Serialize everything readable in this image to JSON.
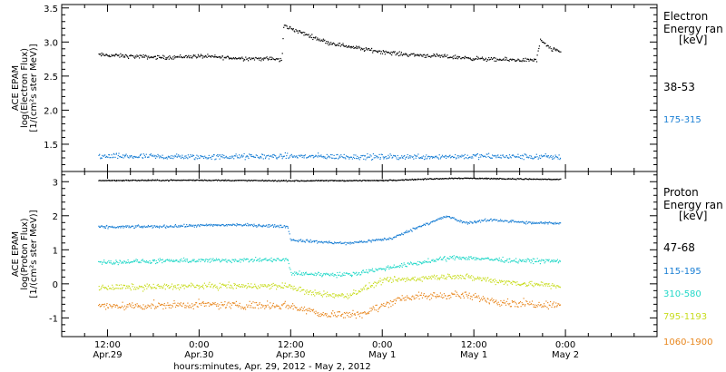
{
  "chart_data": [
    {
      "type": "scatter",
      "panel": "electron",
      "ylabel_lines": [
        "ACE EPAM",
        "log(Electron Flux)",
        "[1/(cm²s ster MeV)]"
      ],
      "ylim": [
        1.1,
        3.55
      ],
      "yticks": [
        1.5,
        2.0,
        2.5,
        3.0,
        3.5
      ],
      "ytick_labels": [
        "1.5",
        "2.0",
        "2.5",
        "3.0",
        "3.5"
      ],
      "legend_title_lines": [
        "Electron",
        "Energy ran",
        "[keV]"
      ],
      "series": [
        {
          "name": "38-53",
          "color": "#000000",
          "level_points": [
            {
              "x": 0.45,
              "y": 2.82
            },
            {
              "x": 0.6,
              "y": 2.8
            },
            {
              "x": 0.8,
              "y": 2.78
            },
            {
              "x": 1.0,
              "y": 2.8
            },
            {
              "x": 1.2,
              "y": 2.77
            },
            {
              "x": 1.4,
              "y": 2.76
            },
            {
              "x": 1.45,
              "y": 2.74
            },
            {
              "x": 1.46,
              "y": 3.25
            },
            {
              "x": 1.55,
              "y": 3.15
            },
            {
              "x": 1.7,
              "y": 3.0
            },
            {
              "x": 1.9,
              "y": 2.9
            },
            {
              "x": 2.1,
              "y": 2.83
            },
            {
              "x": 2.3,
              "y": 2.8
            },
            {
              "x": 2.6,
              "y": 2.75
            },
            {
              "x": 2.84,
              "y": 2.74
            },
            {
              "x": 2.86,
              "y": 3.03
            },
            {
              "x": 2.92,
              "y": 2.9
            },
            {
              "x": 2.97,
              "y": 2.87
            }
          ]
        },
        {
          "name": "175-315",
          "color": "#1a7fd4",
          "level_points": [
            {
              "x": 0.45,
              "y": 1.33
            },
            {
              "x": 1.0,
              "y": 1.32
            },
            {
              "x": 1.5,
              "y": 1.33
            },
            {
              "x": 2.0,
              "y": 1.32
            },
            {
              "x": 2.5,
              "y": 1.33
            },
            {
              "x": 2.97,
              "y": 1.32
            }
          ]
        }
      ]
    },
    {
      "type": "scatter",
      "panel": "proton",
      "ylabel_lines": [
        "ACE EPAM",
        "log(Proton Flux)",
        "[1/(cm²s ster MeV)]"
      ],
      "ylim": [
        -1.55,
        3.3
      ],
      "yticks": [
        -1,
        0,
        1,
        2,
        3
      ],
      "ytick_labels": [
        "-1",
        "0",
        "1",
        "2",
        "3"
      ],
      "legend_title_lines": [
        "Proton",
        "Energy ran",
        "[keV]"
      ],
      "series": [
        {
          "name": "47-68",
          "color": "#000000",
          "level_points": [
            {
              "x": 0.45,
              "y": 3.05
            },
            {
              "x": 1.0,
              "y": 3.06
            },
            {
              "x": 1.5,
              "y": 3.04
            },
            {
              "x": 2.0,
              "y": 3.05
            },
            {
              "x": 2.4,
              "y": 3.12
            },
            {
              "x": 2.97,
              "y": 3.08
            }
          ]
        },
        {
          "name": "115-195",
          "color": "#1a7fd4",
          "level_points": [
            {
              "x": 0.45,
              "y": 1.68
            },
            {
              "x": 0.8,
              "y": 1.7
            },
            {
              "x": 1.2,
              "y": 1.75
            },
            {
              "x": 1.48,
              "y": 1.7
            },
            {
              "x": 1.5,
              "y": 1.3
            },
            {
              "x": 1.8,
              "y": 1.2
            },
            {
              "x": 2.05,
              "y": 1.35
            },
            {
              "x": 2.2,
              "y": 1.7
            },
            {
              "x": 2.35,
              "y": 2.0
            },
            {
              "x": 2.45,
              "y": 1.8
            },
            {
              "x": 2.6,
              "y": 1.9
            },
            {
              "x": 2.8,
              "y": 1.8
            },
            {
              "x": 2.97,
              "y": 1.8
            }
          ]
        },
        {
          "name": "310-580",
          "color": "#22d8c8",
          "level_points": [
            {
              "x": 0.45,
              "y": 0.65
            },
            {
              "x": 1.0,
              "y": 0.7
            },
            {
              "x": 1.48,
              "y": 0.72
            },
            {
              "x": 1.5,
              "y": 0.32
            },
            {
              "x": 1.8,
              "y": 0.28
            },
            {
              "x": 2.1,
              "y": 0.55
            },
            {
              "x": 2.4,
              "y": 0.8
            },
            {
              "x": 2.7,
              "y": 0.7
            },
            {
              "x": 2.97,
              "y": 0.68
            }
          ]
        },
        {
          "name": "795-1193",
          "color": "#c8dc1e",
          "level_points": [
            {
              "x": 0.45,
              "y": -0.1
            },
            {
              "x": 1.0,
              "y": -0.05
            },
            {
              "x": 1.48,
              "y": -0.05
            },
            {
              "x": 1.6,
              "y": -0.25
            },
            {
              "x": 1.8,
              "y": -0.35
            },
            {
              "x": 2.0,
              "y": 0.1
            },
            {
              "x": 2.4,
              "y": 0.25
            },
            {
              "x": 2.7,
              "y": 0.05
            },
            {
              "x": 2.97,
              "y": -0.05
            }
          ]
        },
        {
          "name": "1060-1900",
          "color": "#e8871e",
          "level_points": [
            {
              "x": 0.45,
              "y": -0.65
            },
            {
              "x": 1.0,
              "y": -0.6
            },
            {
              "x": 1.48,
              "y": -0.62
            },
            {
              "x": 1.7,
              "y": -0.9
            },
            {
              "x": 1.9,
              "y": -0.85
            },
            {
              "x": 2.1,
              "y": -0.4
            },
            {
              "x": 2.4,
              "y": -0.3
            },
            {
              "x": 2.7,
              "y": -0.55
            },
            {
              "x": 2.97,
              "y": -0.6
            }
          ]
        }
      ]
    }
  ],
  "x_axis": {
    "xlim": [
      0.25,
      3.5
    ],
    "major_ticks": [
      0.5,
      1.0,
      1.5,
      2.0,
      2.5,
      3.0
    ],
    "tick_labels": [
      {
        "time": "12:00",
        "date": "Apr.29"
      },
      {
        "time": "0:00",
        "date": "Apr.30"
      },
      {
        "time": "12:00",
        "date": "Apr.30"
      },
      {
        "time": "0:00",
        "date": "May 1"
      },
      {
        "time": "12:00",
        "date": "May 1"
      },
      {
        "time": "0:00",
        "date": "May 2"
      }
    ],
    "title": "hours:minutes, Apr. 29, 2012 - May  2, 2012"
  }
}
